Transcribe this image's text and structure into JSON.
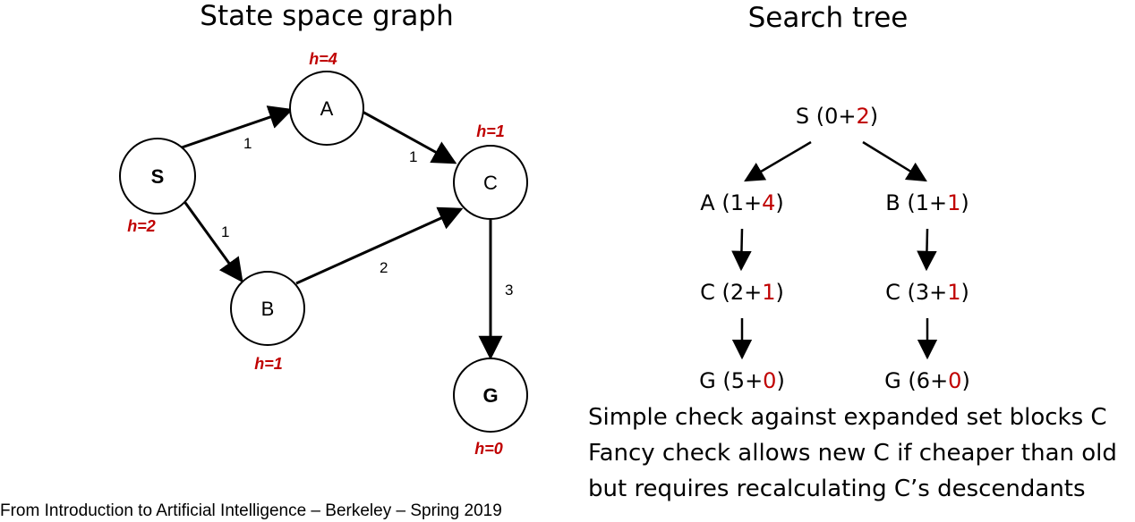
{
  "titles": {
    "graph": "State space graph",
    "tree": "Search tree"
  },
  "graph": {
    "nodes": {
      "S": {
        "label": "S",
        "h": "h=2"
      },
      "A": {
        "label": "A",
        "h": "h=4"
      },
      "B": {
        "label": "B",
        "h": "h=1"
      },
      "C": {
        "label": "C",
        "h": "h=1"
      },
      "G": {
        "label": "G",
        "h": "h=0"
      }
    },
    "edges": [
      {
        "from": "S",
        "to": "A",
        "weight": "1"
      },
      {
        "from": "S",
        "to": "B",
        "weight": "1"
      },
      {
        "from": "A",
        "to": "C",
        "weight": "1"
      },
      {
        "from": "B",
        "to": "C",
        "weight": "2"
      },
      {
        "from": "C",
        "to": "G",
        "weight": "3"
      }
    ]
  },
  "tree": {
    "root": {
      "name": "S",
      "g": "0",
      "h": "2"
    },
    "left": [
      {
        "name": "A",
        "g": "1",
        "h": "4"
      },
      {
        "name": "C",
        "g": "2",
        "h": "1"
      },
      {
        "name": "G",
        "g": "5",
        "h": "0"
      }
    ],
    "right": [
      {
        "name": "B",
        "g": "1",
        "h": "1"
      },
      {
        "name": "C",
        "g": "3",
        "h": "1"
      },
      {
        "name": "G",
        "g": "6",
        "h": "0"
      }
    ]
  },
  "notes": [
    "Simple check against expanded set blocks C",
    "Fancy check allows new C if cheaper than old",
    "but requires recalculating C’s descendants"
  ],
  "credit": "From Introduction to Artificial Intelligence – Berkeley – Spring 2019",
  "colors": {
    "heuristic": "#c00000",
    "stroke": "#000000"
  }
}
